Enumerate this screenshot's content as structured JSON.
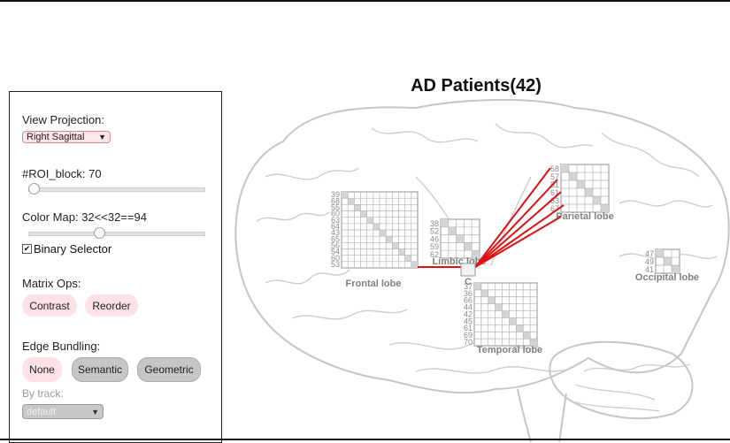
{
  "title": "AD Patients(42)",
  "panel": {
    "view_projection_label": "View Projection:",
    "view_projection_value": "Right Sagittal",
    "roi_block_label": "#ROI_block: 70",
    "roi_block_value": 0.0,
    "color_map_label": "Color Map: 32<<32==94",
    "color_map_value": 0.4,
    "binary_selector_label": "Binary Selector",
    "binary_selector_checked": true,
    "matrix_ops_label": "Matrix Ops:",
    "matrix_ops_buttons": [
      "Contrast",
      "Reorder"
    ],
    "edge_bundling_label": "Edge Bundling:",
    "edge_bundling_buttons": [
      "None",
      "Semantic",
      "Geometric"
    ],
    "by_track_label": "By track:",
    "by_track_value": "default"
  },
  "lobes": [
    {
      "name": "Frontal lobe",
      "roi_ids": [
        "39",
        "68",
        "55",
        "60",
        "63",
        "64",
        "43",
        "65",
        "56",
        "54",
        "60",
        "53"
      ]
    },
    {
      "name": "Limbic lobe",
      "roi_ids": [
        "38",
        "52",
        "46",
        "59",
        "62"
      ]
    },
    {
      "name": "Parietal lobe",
      "roi_ids": [
        "58",
        "57",
        "51",
        "61",
        "63",
        "67"
      ]
    },
    {
      "name": "Occipital lobe",
      "roi_ids": [
        "47",
        "49",
        "41"
      ]
    },
    {
      "name": "Temporal lobe",
      "roi_ids": [
        "37",
        "36",
        "66",
        "44",
        "42",
        "45",
        "61",
        "69",
        "70"
      ]
    }
  ],
  "center_node_label": "C",
  "colors": {
    "edge": "#dd1111",
    "matrix_grid": "#b5b5b5",
    "matrix_diagonal": "#d4d4d4",
    "brain_outline": "#c6c6c6",
    "pill_pink": "#fde1e5",
    "pill_gray": "#c6c6c6"
  },
  "icons": {
    "dropdown": "triangle-down-icon",
    "checkbox": "checkmark-icon"
  }
}
